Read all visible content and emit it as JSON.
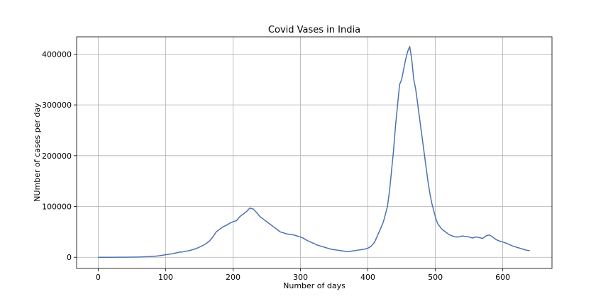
{
  "chart_data": {
    "type": "line",
    "title": "Covid Vases in India",
    "xlabel": "Number of days",
    "ylabel": "NUmber of cases per day",
    "xlim": [
      -32,
      673
    ],
    "ylim": [
      -22000,
      434000
    ],
    "xticks": [
      0,
      100,
      200,
      300,
      400,
      500,
      600
    ],
    "yticks": [
      0,
      100000,
      200000,
      300000,
      400000
    ],
    "grid": true,
    "series": [
      {
        "color": "#4c72b0",
        "x": [
          0,
          10,
          20,
          30,
          40,
          50,
          60,
          65,
          70,
          75,
          80,
          85,
          90,
          95,
          100,
          105,
          110,
          115,
          120,
          125,
          130,
          135,
          140,
          145,
          150,
          155,
          160,
          165,
          170,
          175,
          180,
          185,
          190,
          195,
          200,
          205,
          210,
          215,
          220,
          225,
          230,
          235,
          240,
          245,
          250,
          255,
          260,
          265,
          270,
          275,
          280,
          285,
          290,
          295,
          300,
          305,
          310,
          315,
          320,
          325,
          330,
          335,
          340,
          345,
          350,
          355,
          360,
          365,
          370,
          375,
          380,
          385,
          390,
          395,
          400,
          405,
          410,
          415,
          420,
          423,
          426,
          429,
          432,
          435,
          438,
          441,
          444,
          447,
          450,
          453,
          456,
          459,
          462,
          465,
          468,
          471,
          474,
          477,
          480,
          483,
          486,
          489,
          492,
          495,
          498,
          501,
          504,
          507,
          510,
          515,
          520,
          525,
          530,
          535,
          540,
          545,
          550,
          555,
          560,
          565,
          570,
          575,
          580,
          585,
          590,
          595,
          600,
          605,
          610,
          615,
          620,
          625,
          630,
          635,
          640
        ],
        "y": [
          0,
          0,
          0,
          100,
          200,
          300,
          500,
          700,
          1000,
          1300,
          1800,
          2200,
          3000,
          4000,
          5000,
          6000,
          7000,
          8500,
          10000,
          10500,
          12000,
          13000,
          15000,
          17000,
          20000,
          23000,
          27000,
          32000,
          40000,
          50000,
          55000,
          60000,
          63000,
          67000,
          70000,
          72000,
          80000,
          85000,
          90000,
          97000,
          95000,
          88000,
          80000,
          75000,
          70000,
          65000,
          60000,
          55000,
          50000,
          48000,
          46000,
          45000,
          44000,
          42000,
          40000,
          37000,
          33000,
          30000,
          27000,
          24000,
          22000,
          20000,
          18000,
          16000,
          15000,
          14000,
          13000,
          12000,
          11000,
          12000,
          13000,
          14000,
          15000,
          16000,
          18000,
          22000,
          30000,
          45000,
          60000,
          70000,
          85000,
          100000,
          130000,
          170000,
          210000,
          260000,
          300000,
          340000,
          350000,
          370000,
          390000,
          405000,
          415000,
          390000,
          350000,
          330000,
          300000,
          270000,
          240000,
          210000,
          180000,
          150000,
          125000,
          105000,
          90000,
          75000,
          65000,
          60000,
          55000,
          50000,
          45000,
          42000,
          40000,
          40000,
          42000,
          41000,
          40000,
          38000,
          40000,
          39000,
          37000,
          42000,
          44000,
          40000,
          35000,
          32000,
          30000,
          28000,
          25000,
          22000,
          20000,
          18000,
          16000,
          14000,
          13000
        ]
      }
    ]
  }
}
